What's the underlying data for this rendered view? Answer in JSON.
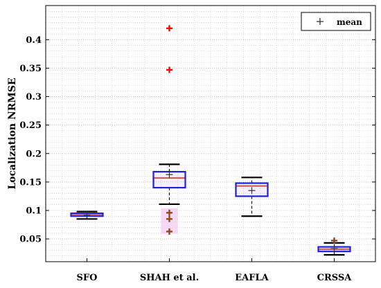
{
  "chart_data": {
    "type": "box",
    "xlabel": "",
    "ylabel": "Localization NRMSE",
    "ylim": [
      0.01,
      0.46
    ],
    "yticks": [
      0.05,
      0.1,
      0.15,
      0.2,
      0.25,
      0.3,
      0.35,
      0.4
    ],
    "ytick_labels": [
      "0.05",
      "0.1",
      "0.15",
      "0.2",
      "0.25",
      "0.3",
      "0.35",
      "0.4"
    ],
    "grid": true,
    "legend": {
      "placement": "top-right",
      "marker": "+",
      "label": "mean"
    },
    "categories": [
      "SFO",
      "SHAH et al.",
      "EAFLA",
      "CRSSA"
    ],
    "boxes": [
      {
        "category": "SFO",
        "whisker_low": 0.085,
        "q1": 0.09,
        "median": 0.092,
        "q3": 0.095,
        "whisker_high": 0.098,
        "mean": 0.092,
        "outliers": [],
        "shade_range": null
      },
      {
        "category": "SHAH et al.",
        "whisker_low": 0.111,
        "q1": 0.14,
        "median": 0.157,
        "q3": 0.168,
        "whisker_high": 0.181,
        "mean": 0.163,
        "outliers": [
          0.42,
          0.347,
          0.096,
          0.085,
          0.063
        ],
        "shade_range": [
          0.059,
          0.104
        ]
      },
      {
        "category": "EAFLA",
        "whisker_low": 0.09,
        "q1": 0.125,
        "median": 0.143,
        "q3": 0.148,
        "whisker_high": 0.158,
        "mean": 0.135,
        "outliers": [],
        "shade_range": null
      },
      {
        "category": "CRSSA",
        "whisker_low": 0.022,
        "q1": 0.028,
        "median": 0.032,
        "q3": 0.036,
        "whisker_high": 0.043,
        "mean": 0.033,
        "outliers": [
          0.047
        ],
        "shade_range": null
      }
    ],
    "colors": {
      "box_edge": "#1f1fd6",
      "box_fill": "#6b4f9e",
      "median": "#c8504e",
      "whisker": "#000000",
      "outlier_high": "#ff0000",
      "outlier_low": "#8b4a1c",
      "mean_marker": "#333333",
      "shade": "#f3c9f0",
      "grid": "#b8b8b8"
    }
  }
}
